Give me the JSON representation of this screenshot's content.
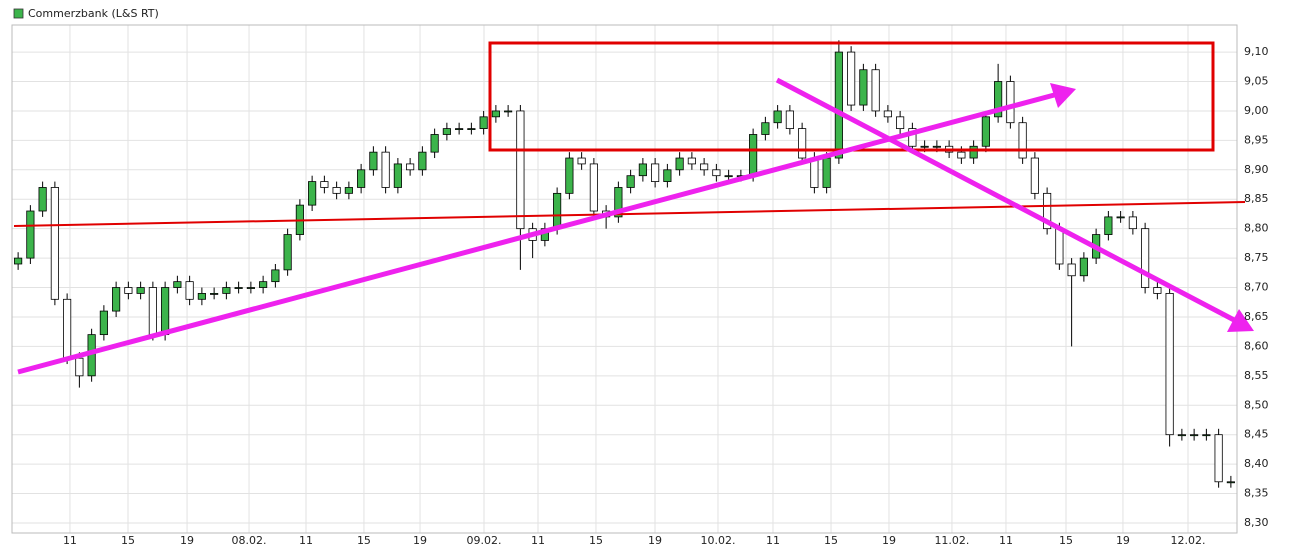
{
  "chart_data": {
    "type": "candlestick",
    "title": "Commerzbank (L&S RT)",
    "legend_color": "#3cb44b",
    "up_color": "#3cb44b",
    "down_color": "#ffffff",
    "grid": true,
    "open": [
      8.74,
      8.75,
      8.83,
      8.87,
      8.68,
      8.58,
      8.55,
      8.62,
      8.66,
      8.7,
      8.69,
      8.7,
      8.62,
      8.7,
      8.71,
      8.68,
      8.69,
      8.69,
      8.7,
      8.7,
      8.7,
      8.71,
      8.73,
      8.79,
      8.84,
      8.88,
      8.87,
      8.86,
      8.87,
      8.9,
      8.93,
      8.87,
      8.91,
      8.9,
      8.93,
      8.96,
      8.97,
      8.97,
      8.97,
      8.99,
      9.0,
      9.0,
      8.8,
      8.78,
      8.8,
      8.86,
      8.92,
      8.91,
      8.83,
      8.82,
      8.87,
      8.89,
      8.91,
      8.88,
      8.9,
      8.92,
      8.91,
      8.9,
      8.89,
      8.89,
      8.89,
      8.96,
      8.98,
      9.0,
      8.97,
      8.92,
      8.87,
      8.92,
      9.1,
      9.01,
      9.07,
      9.0,
      8.99,
      8.97,
      8.94,
      8.94,
      8.94,
      8.93,
      8.92,
      8.94,
      8.99,
      9.05,
      8.98,
      8.92,
      8.86,
      8.8,
      8.74,
      8.72,
      8.75,
      8.79,
      8.82,
      8.82,
      8.8,
      8.7,
      8.69,
      8.45,
      8.45,
      8.45,
      8.45,
      8.37
    ],
    "high": [
      8.76,
      8.84,
      8.88,
      8.88,
      8.69,
      8.59,
      8.63,
      8.67,
      8.71,
      8.71,
      8.71,
      8.71,
      8.71,
      8.72,
      8.72,
      8.7,
      8.7,
      8.71,
      8.71,
      8.71,
      8.72,
      8.74,
      8.8,
      8.85,
      8.89,
      8.89,
      8.88,
      8.88,
      8.91,
      8.94,
      8.94,
      8.92,
      8.92,
      8.94,
      8.97,
      8.98,
      8.98,
      8.98,
      9.0,
      9.01,
      9.01,
      9.01,
      8.81,
      8.81,
      8.87,
      8.93,
      8.93,
      8.92,
      8.84,
      8.88,
      8.9,
      8.92,
      8.92,
      8.91,
      8.93,
      8.93,
      8.92,
      8.91,
      8.9,
      8.9,
      8.97,
      8.99,
      9.01,
      9.01,
      8.98,
      8.93,
      8.93,
      9.12,
      9.11,
      9.08,
      9.08,
      9.01,
      9.0,
      8.98,
      8.95,
      8.95,
      8.95,
      8.94,
      8.95,
      9.0,
      9.08,
      9.06,
      8.99,
      8.93,
      8.87,
      8.81,
      8.75,
      8.76,
      8.8,
      8.83,
      8.83,
      8.83,
      8.81,
      8.71,
      8.7,
      8.46,
      8.46,
      8.46,
      8.46,
      8.38
    ],
    "low": [
      8.73,
      8.74,
      8.82,
      8.67,
      8.57,
      8.53,
      8.54,
      8.61,
      8.65,
      8.68,
      8.68,
      8.61,
      8.61,
      8.69,
      8.67,
      8.67,
      8.68,
      8.68,
      8.69,
      8.69,
      8.69,
      8.7,
      8.72,
      8.78,
      8.83,
      8.86,
      8.85,
      8.85,
      8.86,
      8.89,
      8.86,
      8.86,
      8.89,
      8.89,
      8.92,
      8.95,
      8.96,
      8.96,
      8.96,
      8.98,
      8.99,
      8.73,
      8.75,
      8.77,
      8.79,
      8.85,
      8.9,
      8.82,
      8.8,
      8.81,
      8.86,
      8.88,
      8.87,
      8.87,
      8.89,
      8.9,
      8.89,
      8.88,
      8.88,
      8.88,
      8.88,
      8.95,
      8.97,
      8.96,
      8.91,
      8.86,
      8.86,
      8.91,
      9.0,
      9.0,
      8.99,
      8.98,
      8.96,
      8.93,
      8.93,
      8.93,
      8.92,
      8.91,
      8.91,
      8.93,
      8.98,
      8.97,
      8.91,
      8.85,
      8.79,
      8.73,
      8.6,
      8.71,
      8.74,
      8.78,
      8.81,
      8.79,
      8.69,
      8.68,
      8.43,
      8.44,
      8.44,
      8.44,
      8.36,
      8.36
    ],
    "close": [
      8.75,
      8.83,
      8.87,
      8.68,
      8.58,
      8.55,
      8.62,
      8.66,
      8.7,
      8.69,
      8.7,
      8.62,
      8.7,
      8.71,
      8.68,
      8.69,
      8.69,
      8.7,
      8.7,
      8.7,
      8.71,
      8.73,
      8.79,
      8.84,
      8.88,
      8.87,
      8.86,
      8.87,
      8.9,
      8.93,
      8.87,
      8.91,
      8.9,
      8.93,
      8.96,
      8.97,
      8.97,
      8.97,
      8.99,
      9.0,
      9.0,
      8.8,
      8.78,
      8.8,
      8.86,
      8.92,
      8.91,
      8.83,
      8.82,
      8.87,
      8.89,
      8.91,
      8.88,
      8.9,
      8.92,
      8.91,
      8.9,
      8.89,
      8.89,
      8.89,
      8.96,
      8.98,
      9.0,
      8.97,
      8.92,
      8.87,
      8.92,
      9.1,
      9.01,
      9.07,
      9.0,
      8.99,
      8.97,
      8.94,
      8.94,
      8.94,
      8.93,
      8.92,
      8.94,
      8.99,
      9.05,
      8.98,
      8.92,
      8.86,
      8.8,
      8.74,
      8.72,
      8.75,
      8.79,
      8.82,
      8.82,
      8.8,
      8.7,
      8.69,
      8.45,
      8.45,
      8.45,
      8.45,
      8.37,
      8.37
    ],
    "xlim": [
      0,
      100
    ],
    "xticks": [
      {
        "value": 4.73,
        "label": "11"
      },
      {
        "value": 9.47,
        "label": "15"
      },
      {
        "value": 14.29,
        "label": "19"
      },
      {
        "value": 19.35,
        "label": "08.02."
      },
      {
        "value": 24.0,
        "label": "11"
      },
      {
        "value": 28.73,
        "label": "15"
      },
      {
        "value": 33.31,
        "label": "19"
      },
      {
        "value": 38.53,
        "label": "09.02."
      },
      {
        "value": 42.94,
        "label": "11"
      },
      {
        "value": 47.67,
        "label": "15"
      },
      {
        "value": 52.49,
        "label": "19"
      },
      {
        "value": 57.63,
        "label": "10.02."
      },
      {
        "value": 62.12,
        "label": "11"
      },
      {
        "value": 66.86,
        "label": "15"
      },
      {
        "value": 71.59,
        "label": "19"
      },
      {
        "value": 76.73,
        "label": "11.02."
      },
      {
        "value": 81.14,
        "label": "11"
      },
      {
        "value": 86.04,
        "label": "15"
      },
      {
        "value": 90.69,
        "label": "19"
      },
      {
        "value": 96.0,
        "label": "12.02."
      }
    ],
    "ylim": [
      8.283,
      9.146
    ],
    "yticks": [
      {
        "value": 8.3,
        "label": "8,30"
      },
      {
        "value": 8.35,
        "label": "8,35"
      },
      {
        "value": 8.4,
        "label": "8,40"
      },
      {
        "value": 8.45,
        "label": "8,45"
      },
      {
        "value": 8.5,
        "label": "8,50"
      },
      {
        "value": 8.55,
        "label": "8,55"
      },
      {
        "value": 8.6,
        "label": "8,60"
      },
      {
        "value": 8.65,
        "label": "8,65"
      },
      {
        "value": 8.7,
        "label": "8,70"
      },
      {
        "value": 8.75,
        "label": "8,75"
      },
      {
        "value": 8.8,
        "label": "8,80"
      },
      {
        "value": 8.85,
        "label": "8,85"
      },
      {
        "value": 8.9,
        "label": "8,90"
      },
      {
        "value": 8.95,
        "label": "8,95"
      },
      {
        "value": 9.0,
        "label": "9,00"
      },
      {
        "value": 9.05,
        "label": "9,05"
      },
      {
        "value": 9.1,
        "label": "9,10"
      }
    ]
  }
}
